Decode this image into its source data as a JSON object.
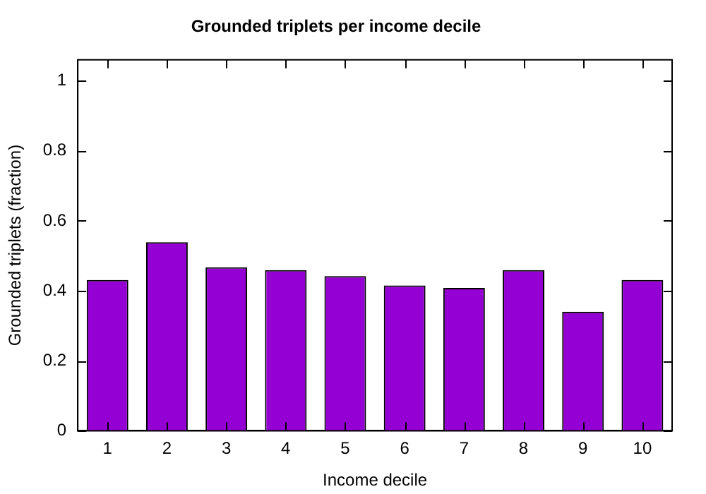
{
  "chart_data": {
    "type": "bar",
    "title": "Grounded triplets per income decile",
    "xlabel": "Income decile",
    "ylabel": "Grounded triplets (fraction)",
    "categories": [
      "1",
      "2",
      "3",
      "4",
      "5",
      "6",
      "7",
      "8",
      "9",
      "10"
    ],
    "values": [
      0.431,
      0.539,
      0.467,
      0.459,
      0.442,
      0.415,
      0.408,
      0.459,
      0.34,
      0.431
    ],
    "color": "#9400d3",
    "ylim": [
      0,
      1.06
    ],
    "yticks": [
      0,
      0.2,
      0.4,
      0.6,
      0.8,
      1
    ],
    "grid": false,
    "legend": false
  }
}
